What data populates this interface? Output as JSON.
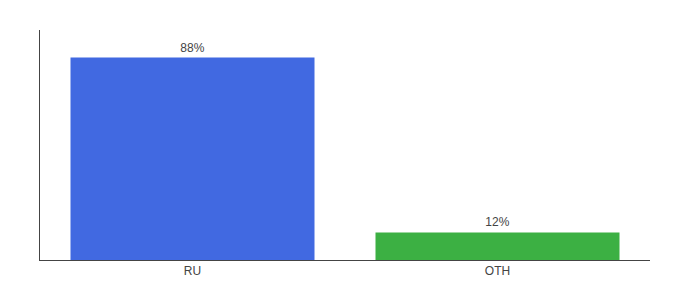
{
  "chart_data": {
    "type": "bar",
    "categories": [
      "RU",
      "OTH"
    ],
    "values": [
      88,
      12
    ],
    "value_labels": [
      "88%",
      "12%"
    ],
    "colors": [
      "#4169e1",
      "#3cb043"
    ],
    "ylim": [
      0,
      100
    ],
    "data_labels": true,
    "tick_labels": "x",
    "grid": false
  }
}
